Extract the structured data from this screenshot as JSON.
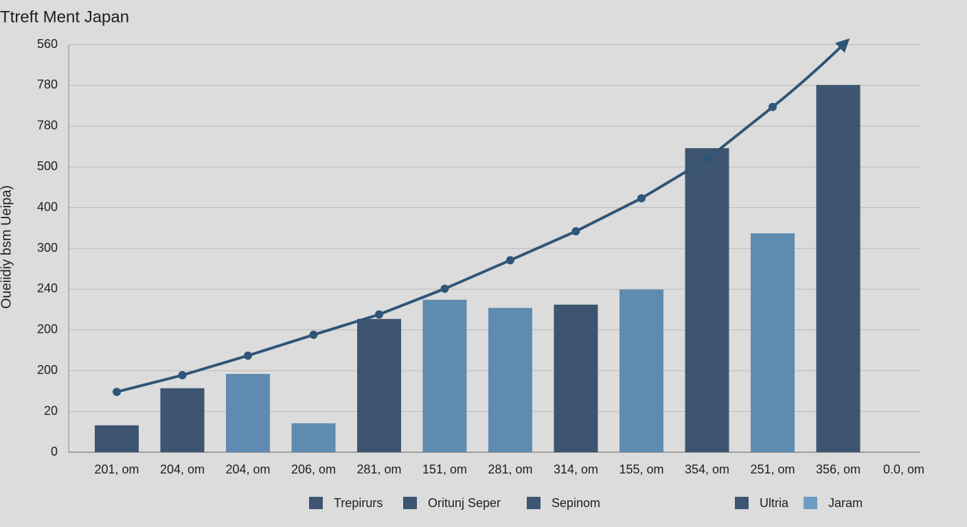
{
  "chart_data": {
    "type": "bar",
    "title": "Ttreft Ment Japan",
    "y_label": "Oueiidiy bsm Ueipa)",
    "categories": [
      "201, om",
      "204, om",
      "204, om",
      "206, om",
      "281, om",
      "151, om",
      "281, om",
      "314, om",
      "155, om",
      "354, om",
      "251, om",
      "356, om",
      "0.0, om"
    ],
    "series": [
      {
        "type": "bar",
        "colors": [
          "#3d5570",
          "#3d5570",
          "#5f8bb0",
          "#5f8bb0",
          "#3d5570",
          "#5f8bb0",
          "#5f8bb0",
          "#3d5570",
          "#5f8bb0",
          "#3d5570",
          "#5f8bb0",
          "#3d5570",
          null
        ],
        "values": [
          0.66,
          1.57,
          1.92,
          0.71,
          3.27,
          3.74,
          3.54,
          3.62,
          3.99,
          7.46,
          5.37,
          9.01,
          null
        ]
      },
      {
        "type": "line",
        "color": "#2f5578",
        "values": [
          1.48,
          1.89,
          2.37,
          2.88,
          3.38,
          4.01,
          4.71,
          5.42,
          6.23,
          7.19,
          8.47,
          null,
          null
        ]
      }
    ],
    "legend": [
      {
        "name": "Trepirurs",
        "color": "#3d5570"
      },
      {
        "name": "Oritunj Seper",
        "color": "#3d5570"
      },
      {
        "name": "Sepinom",
        "color": "#3d5570"
      },
      {
        "name": "Ultria",
        "color": "#3d5570"
      },
      {
        "name": "Jaram",
        "color": "#6f9cc2"
      }
    ],
    "ylim": [
      0,
      10
    ],
    "yticks": [
      0,
      {
        "value": 1,
        "label": "20"
      },
      {
        "value": 2,
        "label": "200"
      },
      {
        "value": 3,
        "label": "200"
      },
      {
        "value": 4,
        "label": "240"
      },
      {
        "value": 5,
        "label": "300"
      },
      {
        "value": 6,
        "label": "400"
      },
      {
        "value": 7,
        "label": "500"
      },
      {
        "value": 8,
        "label": "780"
      },
      {
        "value": 9,
        "label": "780"
      },
      {
        "value": 10,
        "label": "560"
      }
    ],
    "grid": true
  }
}
